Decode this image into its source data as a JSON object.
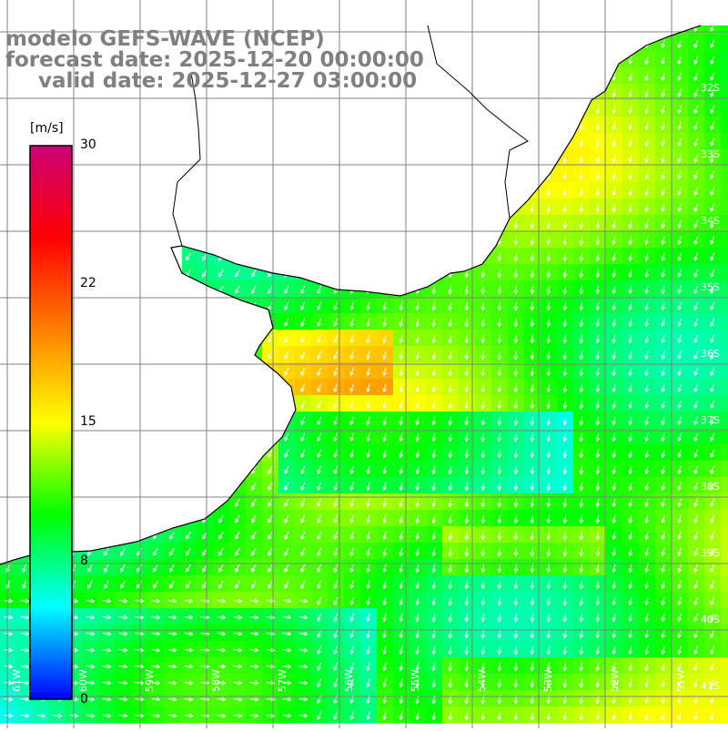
{
  "titles": {
    "line1": "modelo GEFS-WAVE (NCEP)",
    "line2": "forecast date: 2025-12-20 00:00:00",
    "line3": "valid date: 2025-12-27 03:00:00"
  },
  "legend": {
    "unit": "[m/s]",
    "ticks": [
      "30",
      "22",
      "15",
      "8",
      "0"
    ],
    "tick_values": [
      30,
      22,
      15,
      8,
      0
    ],
    "range": [
      0,
      30
    ]
  },
  "grid": {
    "lat_labels": [
      "32S",
      "33S",
      "34S",
      "35S",
      "36S",
      "37S",
      "38S",
      "39S",
      "40S",
      "41S"
    ],
    "lat_values": [
      -32,
      -33,
      -34,
      -35,
      -36,
      -37,
      -38,
      -39,
      -40,
      -41
    ],
    "lon_labels": [
      "61W",
      "60W",
      "59W",
      "58W",
      "57W",
      "56W",
      "55W",
      "54W",
      "53W",
      "52W",
      "51W"
    ],
    "lon_values": [
      -61,
      -60,
      -59,
      -58,
      -57,
      -56,
      -55,
      -54,
      -53,
      -52,
      -51
    ]
  },
  "colors": {
    "land": "#ffffff",
    "grid": "#808080",
    "coast": "#000000",
    "arrows": "#ffffff",
    "scale": [
      "#0000ff",
      "#00ffff",
      "#00ff00",
      "#ffff00",
      "#ff8000",
      "#ff0000",
      "#cc0077"
    ]
  },
  "field": {
    "variable": "wind speed",
    "arrow_direction": "southwest"
  }
}
